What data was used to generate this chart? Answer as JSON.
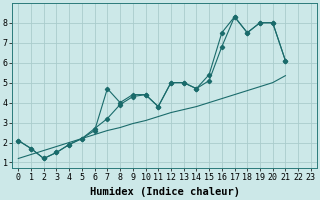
{
  "xlabel": "Humidex (Indice chaleur)",
  "bg_color": "#cce8e8",
  "grid_color": "#aacccc",
  "line_color": "#1a6b6b",
  "x_data": [
    0,
    1,
    2,
    3,
    4,
    5,
    6,
    7,
    8,
    9,
    10,
    11,
    12,
    13,
    14,
    15,
    16,
    17,
    18,
    19,
    20,
    21,
    22,
    23
  ],
  "y_line1": [
    2.1,
    1.7,
    1.2,
    1.5,
    1.9,
    2.2,
    2.6,
    4.7,
    4.0,
    4.4,
    4.4,
    3.8,
    5.0,
    5.0,
    4.7,
    5.1,
    6.8,
    8.3,
    7.5,
    8.0,
    8.0,
    6.1,
    null,
    null
  ],
  "y_line2": [
    2.1,
    1.7,
    1.2,
    1.5,
    1.9,
    2.2,
    2.7,
    3.2,
    3.9,
    4.3,
    4.4,
    3.8,
    5.0,
    5.0,
    4.7,
    5.4,
    7.5,
    8.3,
    7.5,
    8.0,
    8.0,
    6.1,
    null,
    null
  ],
  "y_straight": [
    1.2,
    1.4,
    1.6,
    1.8,
    2.0,
    2.2,
    2.4,
    2.6,
    2.75,
    2.95,
    3.1,
    3.3,
    3.5,
    3.65,
    3.8,
    4.0,
    4.2,
    4.4,
    4.6,
    4.8,
    5.0,
    5.35,
    null,
    null
  ],
  "xlim": [
    -0.5,
    23.5
  ],
  "ylim": [
    0.7,
    9.0
  ],
  "yticks": [
    1,
    2,
    3,
    4,
    5,
    6,
    7,
    8
  ],
  "xticks": [
    0,
    1,
    2,
    3,
    4,
    5,
    6,
    7,
    8,
    9,
    10,
    11,
    12,
    13,
    14,
    15,
    16,
    17,
    18,
    19,
    20,
    21,
    22,
    23
  ],
  "marker": "D",
  "markersize": 2.2,
  "linewidth": 0.8,
  "xlabel_fontsize": 7.5,
  "tick_fontsize": 6.0
}
